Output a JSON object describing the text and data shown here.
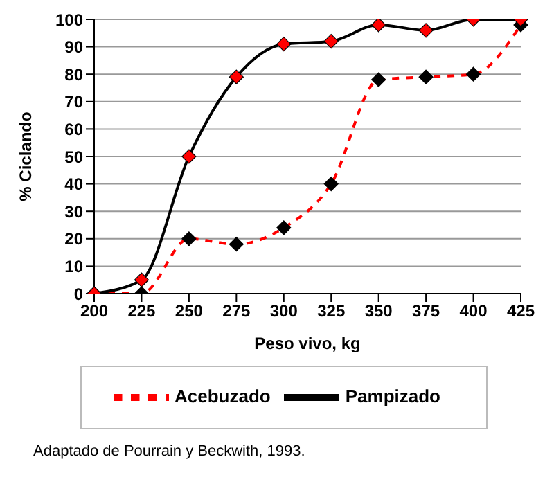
{
  "chart_data": {
    "type": "line",
    "xlabel": "Peso vivo, kg",
    "ylabel": "% Ciclando",
    "categories": [
      "200",
      "225",
      "250",
      "275",
      "300",
      "325",
      "350",
      "375",
      "400",
      "425"
    ],
    "series": [
      {
        "name": "Pampizado",
        "color": "#000000",
        "line_style": "solid",
        "colors": [
          "#ff0000",
          "#ff0000",
          "#ff0000",
          "#ff0000",
          "#ff0000",
          "#ff0000",
          "#ff0000",
          "#ff0000",
          "#ff0000",
          "#ff0000"
        ],
        "values": [
          0,
          5,
          50,
          79,
          91,
          92,
          98,
          96,
          100,
          100
        ]
      },
      {
        "name": "Acebuzado",
        "color": "#ff0000",
        "line_style": "dashed",
        "colors": [
          "#000000",
          "#000000",
          "#000000",
          "#000000",
          "#000000",
          "#000000",
          "#000000",
          "#000000",
          "#000000",
          "#000000"
        ],
        "values": [
          0,
          0,
          20,
          18,
          24,
          40,
          78,
          79,
          80,
          98
        ]
      }
    ],
    "ylim": [
      0,
      100
    ],
    "yticks": [
      0,
      10,
      20,
      30,
      40,
      50,
      60,
      70,
      80,
      90,
      100
    ],
    "grid": "y",
    "marker": "diamond",
    "legend": "bottom",
    "annotations": [
      "Adaptado de Pourrain y Beckwith, 1993."
    ]
  }
}
